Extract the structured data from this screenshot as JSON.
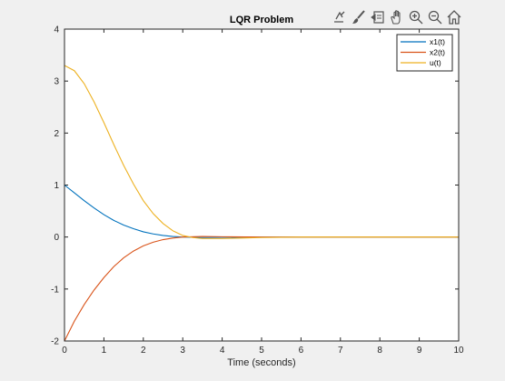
{
  "figure": {
    "background": "#f0f0f0",
    "axes_background": "#ffffff"
  },
  "toolbar": {
    "icons": [
      "edit-plot-icon",
      "data-brush-icon",
      "data-cursor-icon",
      "pan-icon",
      "zoom-in-icon",
      "zoom-out-icon",
      "home-icon"
    ]
  },
  "chart_data": {
    "type": "line",
    "title": "LQR Problem",
    "xlabel": "Time (seconds)",
    "ylabel": "",
    "xlim": [
      0,
      10
    ],
    "ylim": [
      -2,
      4
    ],
    "xticks": [
      0,
      1,
      2,
      3,
      4,
      5,
      6,
      7,
      8,
      9,
      10
    ],
    "yticks": [
      -2,
      -1,
      0,
      1,
      2,
      3,
      4
    ],
    "legend_position": "top-right",
    "grid": false,
    "series": [
      {
        "name": "x1(t)",
        "color": "#0072BD",
        "x": [
          0,
          0.25,
          0.5,
          0.75,
          1.0,
          1.25,
          1.5,
          1.75,
          2.0,
          2.25,
          2.5,
          2.75,
          3.0,
          3.5,
          4.0,
          5.0,
          6.0,
          7.0,
          8.0,
          9.0,
          10.0
        ],
        "values": [
          1.0,
          0.85,
          0.7,
          0.56,
          0.43,
          0.32,
          0.23,
          0.16,
          0.1,
          0.06,
          0.03,
          0.01,
          0.0,
          -0.01,
          -0.005,
          0.0,
          0.0,
          0.0,
          0.0,
          0.0,
          0.0
        ]
      },
      {
        "name": "x2(t)",
        "color": "#D95319",
        "x": [
          0,
          0.25,
          0.5,
          0.75,
          1.0,
          1.25,
          1.5,
          1.75,
          2.0,
          2.25,
          2.5,
          2.75,
          3.0,
          3.5,
          4.0,
          5.0,
          6.0,
          7.0,
          8.0,
          9.0,
          10.0
        ],
        "values": [
          -2.0,
          -1.62,
          -1.3,
          -1.02,
          -0.78,
          -0.57,
          -0.4,
          -0.27,
          -0.17,
          -0.1,
          -0.05,
          -0.02,
          0.0,
          0.01,
          0.005,
          0.0,
          0.0,
          0.0,
          0.0,
          0.0,
          0.0
        ]
      },
      {
        "name": "u(t)",
        "color": "#EDB120",
        "x": [
          0,
          0.25,
          0.5,
          0.75,
          1.0,
          1.25,
          1.5,
          1.75,
          2.0,
          2.25,
          2.5,
          2.75,
          3.0,
          3.25,
          3.5,
          4.0,
          4.5,
          5.0,
          6.0,
          7.0,
          8.0,
          9.0,
          10.0
        ],
        "values": [
          3.3,
          3.2,
          2.95,
          2.6,
          2.2,
          1.78,
          1.38,
          1.02,
          0.7,
          0.45,
          0.26,
          0.12,
          0.03,
          -0.01,
          -0.03,
          -0.03,
          -0.02,
          -0.01,
          0.0,
          0.0,
          0.0,
          0.0,
          0.0
        ]
      }
    ]
  }
}
